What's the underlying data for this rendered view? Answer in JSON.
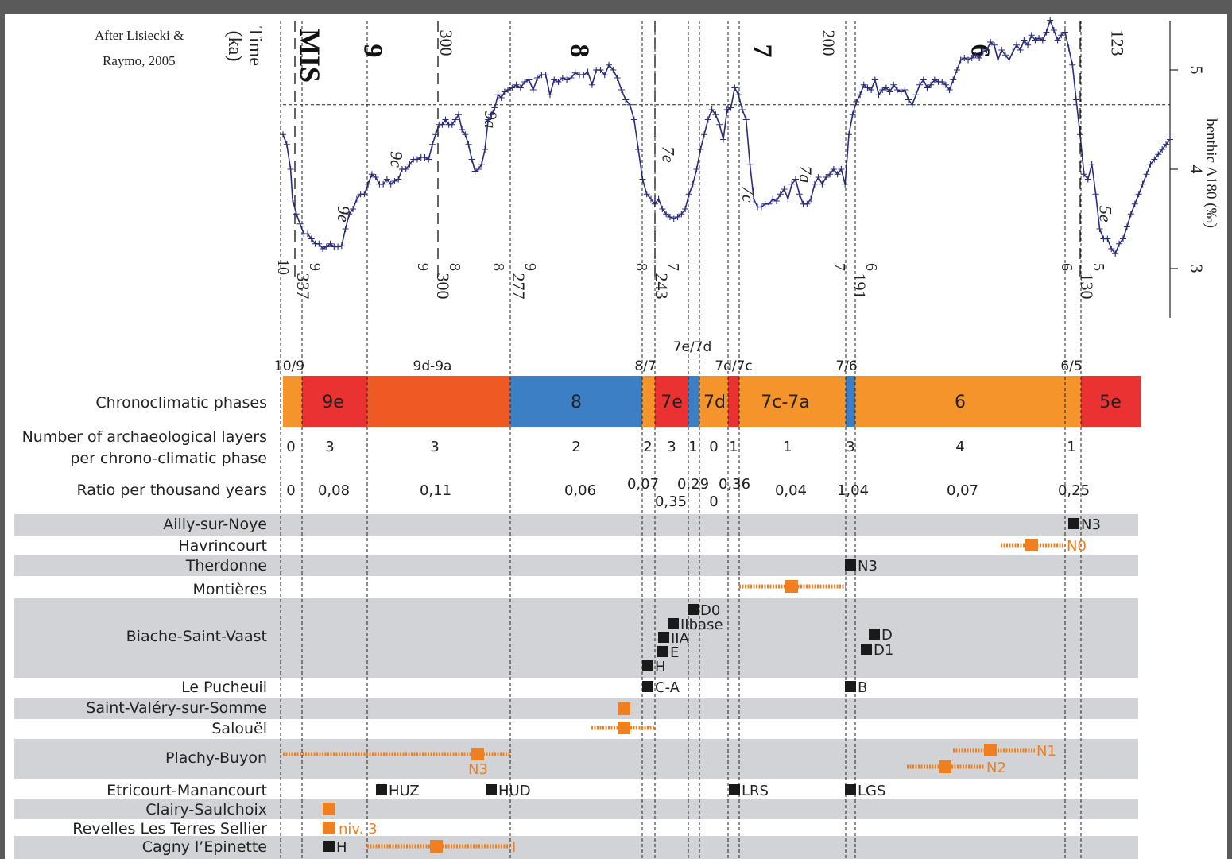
{
  "source": {
    "line1": "After Lisiecki &",
    "line2": "Raymo, 2005"
  },
  "chart_data": {
    "type": "line",
    "top_labels": {
      "time_label_1": "Time",
      "time_label_2": "(ka)",
      "mis_label": "MIS",
      "y_axis_label": "benthic  Δ180 (‰)"
    },
    "x_tick_labels": [
      {
        "x": 300,
        "text": "300"
      },
      {
        "x": 200,
        "text": "200"
      },
      {
        "x": 123,
        "text": "123"
      }
    ],
    "y_axis": {
      "ticks": [
        5,
        4,
        3
      ],
      "tick_labels": [
        "5",
        "4",
        "3"
      ],
      "ylim": [
        2.7,
        5.5
      ],
      "reference_value": 4.65
    },
    "mis_stage_labels": [
      {
        "text": "9",
        "x": 318
      },
      {
        "text": "8",
        "x": 262
      },
      {
        "text": "7",
        "x": 216
      },
      {
        "text": "6",
        "x": 158
      }
    ],
    "substage_labels": [
      {
        "text": "9e",
        "x": 325,
        "y": 3.55
      },
      {
        "text": "9c",
        "x": 311,
        "y": 4.1
      },
      {
        "text": "9a",
        "x": 284,
        "y": 4.5
      },
      {
        "text": "7e",
        "x": 240,
        "y": 4.15
      },
      {
        "text": "7c",
        "x": 219,
        "y": 3.75
      },
      {
        "text": "7a",
        "x": 204,
        "y": 3.95
      },
      {
        "text": "5e",
        "x": 124,
        "y": 3.55
      }
    ],
    "boundaries": [
      {
        "x": 337,
        "text": "337",
        "left": "10",
        "right": "9"
      },
      {
        "x": 300,
        "text": "300",
        "left": "9",
        "right": "8"
      },
      {
        "x": 277,
        "text": "277",
        "left": "8",
        "right": "9"
      },
      {
        "x": 243,
        "text": "243",
        "left": "8",
        "right": "7"
      },
      {
        "x": 191,
        "text": "191",
        "left": "7",
        "right": "6"
      },
      {
        "x": 130,
        "text": "130",
        "left": "6",
        "right": "5"
      }
    ],
    "series": [
      {
        "x": [
          342,
          340,
          338,
          337,
          336,
          335,
          334,
          333,
          332,
          331,
          330,
          329,
          328,
          327,
          326,
          325,
          324,
          323,
          322,
          321,
          320,
          319,
          318,
          317,
          316,
          315,
          314,
          313,
          312,
          311,
          310,
          309,
          308,
          307,
          306,
          305,
          304,
          303,
          302,
          301,
          300,
          299,
          298,
          297,
          296,
          295,
          294,
          293,
          292,
          291,
          290,
          289,
          288,
          287,
          286,
          285,
          284,
          283,
          282,
          281,
          280,
          279,
          278,
          277,
          276,
          275,
          274,
          273,
          272,
          271,
          270,
          269,
          268,
          267,
          266,
          265,
          264,
          263,
          262,
          261,
          260,
          259,
          258,
          257,
          256,
          255,
          254,
          253,
          252,
          251,
          250,
          249,
          248,
          247,
          246,
          245,
          244,
          243,
          242,
          241,
          240,
          239,
          238,
          237,
          236,
          235,
          234,
          233,
          232,
          231,
          230,
          229,
          228,
          227,
          226,
          225,
          224,
          223,
          222,
          221,
          220,
          219,
          218,
          217,
          216,
          215,
          214,
          213,
          212,
          211,
          210,
          209,
          208,
          207,
          206,
          205,
          204,
          203,
          202,
          201,
          200,
          199,
          198,
          197,
          196,
          195,
          194,
          193,
          192,
          191,
          190,
          189,
          188,
          187,
          186,
          185,
          184,
          183,
          182,
          181,
          180,
          179,
          178,
          177,
          176,
          175,
          174,
          173,
          172,
          171,
          170,
          169,
          168,
          167,
          166,
          165,
          164,
          163,
          162,
          161,
          160,
          159,
          158,
          157,
          156,
          155,
          154,
          153,
          152,
          151,
          150,
          149,
          148,
          147,
          146,
          145,
          144,
          143,
          142,
          141,
          140,
          139,
          138,
          137,
          136,
          135,
          134,
          133,
          132,
          131,
          130,
          129,
          128,
          127,
          126,
          125,
          124,
          123,
          122,
          121,
          120,
          119,
          118,
          117,
          116,
          115,
          114,
          113,
          112,
          111,
          110,
          109,
          108,
          107,
          106
        ],
        "values": [
          4.35,
          4.25,
          4.0,
          3.7,
          3.55,
          3.45,
          3.35,
          3.35,
          3.3,
          3.25,
          3.25,
          3.2,
          3.22,
          3.25,
          3.22,
          3.22,
          3.23,
          3.4,
          3.55,
          3.6,
          3.7,
          3.75,
          3.75,
          3.85,
          3.95,
          3.92,
          3.85,
          3.85,
          3.9,
          3.85,
          3.88,
          3.9,
          4.0,
          4.0,
          4.05,
          4.1,
          4.1,
          4.12,
          4.12,
          4.1,
          4.25,
          4.35,
          4.45,
          4.45,
          4.5,
          4.45,
          4.45,
          4.5,
          4.55,
          4.4,
          4.35,
          4.25,
          4.1,
          3.98,
          4.0,
          4.05,
          4.2,
          4.5,
          4.55,
          4.62,
          4.75,
          4.72,
          4.78,
          4.8,
          4.82,
          4.85,
          4.82,
          4.88,
          4.9,
          4.8,
          4.92,
          4.95,
          4.95,
          4.75,
          4.9,
          4.88,
          4.92,
          4.9,
          4.92,
          4.97,
          4.95,
          4.95,
          4.98,
          4.85,
          5.0,
          5.0,
          4.95,
          5.05,
          5.0,
          4.92,
          4.8,
          4.7,
          4.65,
          4.5,
          4.2,
          3.9,
          3.75,
          3.7,
          3.65,
          3.7,
          3.6,
          3.55,
          3.52,
          3.5,
          3.52,
          3.55,
          3.6,
          3.75,
          3.85,
          4.0,
          4.2,
          4.35,
          4.5,
          4.6,
          4.55,
          4.45,
          4.3,
          4.6,
          4.62,
          4.82,
          4.75,
          4.6,
          4.5,
          4.05,
          3.7,
          3.62,
          3.62,
          3.65,
          3.65,
          3.7,
          3.68,
          3.75,
          3.8,
          3.7,
          3.85,
          3.9,
          3.75,
          3.65,
          3.65,
          3.7,
          3.85,
          3.92,
          3.85,
          3.92,
          3.95,
          4.0,
          3.95,
          4.0,
          3.85,
          4.35,
          4.55,
          4.68,
          4.75,
          4.85,
          4.82,
          4.8,
          4.9,
          4.75,
          4.8,
          4.82,
          4.78,
          4.85,
          4.8,
          4.78,
          4.8,
          4.7,
          4.65,
          4.75,
          4.85,
          4.9,
          4.82,
          4.85,
          4.9,
          4.88,
          4.88,
          4.85,
          4.8,
          4.9,
          5.0,
          5.1,
          5.12,
          5.1,
          5.12,
          5.15,
          5.12,
          5.18,
          5.2,
          5.28,
          5.25,
          5.1,
          5.2,
          5.15,
          5.1,
          5.18,
          5.25,
          5.2,
          5.3,
          5.25,
          5.35,
          5.3,
          5.32,
          5.3,
          5.38,
          5.5,
          5.4,
          5.3,
          5.35,
          5.38,
          5.22,
          5.05,
          4.7,
          4.35,
          3.95,
          3.9,
          4.05,
          3.75,
          3.4,
          3.3,
          3.3,
          3.2,
          3.15,
          3.25,
          3.3,
          3.42,
          3.55,
          3.65,
          3.75,
          3.85,
          3.95,
          4.05,
          4.1,
          4.15,
          4.2,
          4.25,
          4.3
        ]
      }
    ]
  },
  "phases": {
    "boundary_labels": [
      "10/9",
      "9d-9a",
      "8/7",
      "7e/7d",
      "7d/7c",
      "7/6",
      "6/5"
    ],
    "row_label": "Chronoclimatic phases",
    "segments": [
      {
        "label": "",
        "color": "#f4942a"
      },
      {
        "label": "9e",
        "color": "#ea3232"
      },
      {
        "label": "",
        "color": "#ef5a24"
      },
      {
        "label": "8",
        "color": "#3d7fc4"
      },
      {
        "label": "",
        "color": "#f4942a"
      },
      {
        "label": "7e",
        "color": "#ea3232"
      },
      {
        "label": "7d",
        "color": "#3d7fc4"
      },
      {
        "label": "",
        "color": "#f4942a"
      },
      {
        "label": "7c-7a",
        "color": "#ea3232"
      },
      {
        "label": "",
        "color": "#f4942a"
      },
      {
        "label": "6",
        "color": "#3d7fc4"
      },
      {
        "label": "",
        "color": "#f4942a"
      },
      {
        "label": "5e",
        "color": "#ea3232"
      }
    ]
  },
  "counts": {
    "label_line1": "Number of archaeological layers",
    "label_line2": "per chrono-climatic phase",
    "values": [
      "0",
      "3",
      "3",
      "2",
      "2",
      "3",
      "1",
      "0",
      "1",
      "1",
      "3",
      "4",
      "1"
    ]
  },
  "ratios": {
    "label": "Ratio per thousand years",
    "values": [
      "0",
      "0,08",
      "0,11",
      "0,06",
      "0,07",
      "0,35",
      "0,29",
      "0",
      "0,36",
      "0,04",
      "1,04",
      "0,07",
      "0,25"
    ]
  },
  "sites": [
    {
      "name": "Ailly-sur-Noye",
      "markers": [
        {
          "label": "N3"
        }
      ]
    },
    {
      "name": "Havrincourt",
      "markers": [
        {
          "label": "N0"
        }
      ]
    },
    {
      "name": "Therdonne",
      "markers": [
        {
          "label": "N3"
        }
      ]
    },
    {
      "name": "Montières",
      "markers": [
        {
          "label": ""
        }
      ]
    },
    {
      "name": "Biache-Saint-Vaast",
      "markers": [
        {
          "label": "D0"
        },
        {
          "label": "IIbase"
        },
        {
          "label": "IIA"
        },
        {
          "label": "E"
        },
        {
          "label": "H"
        },
        {
          "label": "D"
        },
        {
          "label": "D1"
        }
      ]
    },
    {
      "name": "Le Pucheuil",
      "markers": [
        {
          "label": "C-A"
        },
        {
          "label": "B"
        }
      ]
    },
    {
      "name": "Saint-Valéry-sur-Somme",
      "markers": [
        {
          "label": ""
        }
      ]
    },
    {
      "name": "Salouël",
      "markers": [
        {
          "label": ""
        }
      ]
    },
    {
      "name": "Plachy-Buyon",
      "markers": [
        {
          "label": "N3"
        },
        {
          "label": "N1"
        },
        {
          "label": "N2"
        }
      ]
    },
    {
      "name": "Etricourt-Manancourt",
      "markers": [
        {
          "label": "HUZ"
        },
        {
          "label": "HUD"
        },
        {
          "label": "LRS"
        },
        {
          "label": "LGS"
        }
      ]
    },
    {
      "name": "Clairy-Saulchoix",
      "markers": [
        {
          "label": ""
        }
      ]
    },
    {
      "name": "Revelles Les Terres Sellier",
      "markers": [
        {
          "label": "niv. 3"
        }
      ]
    },
    {
      "name": "Cagny l’Epinette",
      "markers": [
        {
          "label": "H"
        },
        {
          "label": "I"
        }
      ]
    }
  ],
  "colors": {
    "curve": "#2b2d7a",
    "black_marker": "#1a1a1a",
    "orange_marker": "#f07f1f",
    "band_gray": "#d1d3d6"
  }
}
